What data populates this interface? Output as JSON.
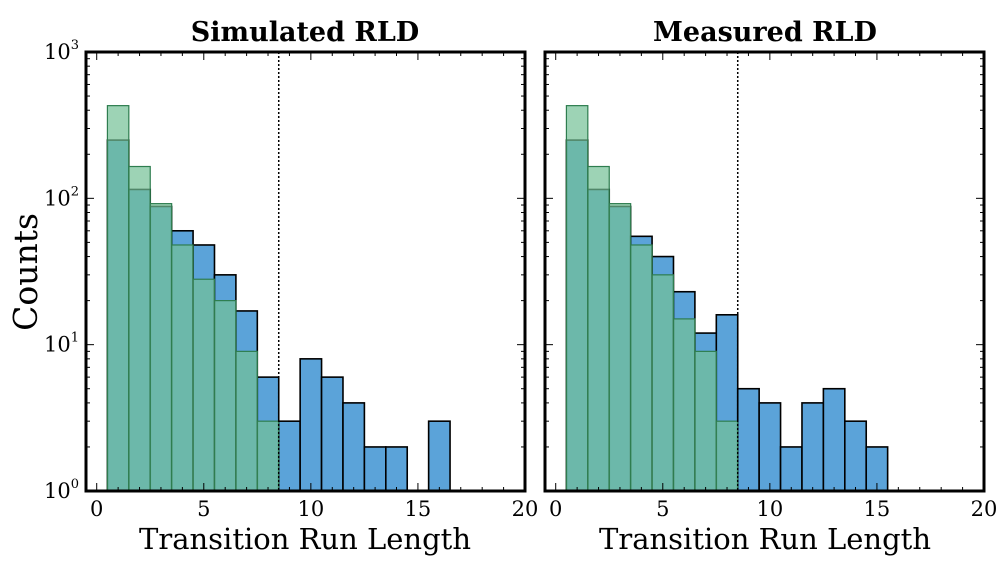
{
  "figure": {
    "ylabel": "Counts",
    "xlabel": "Transition Run Length"
  },
  "colors": {
    "blue_fill": "#5ba3d9",
    "green_fill": "#74c095",
    "green_edge": "#2e7d4f",
    "bar_edge": "#000000"
  },
  "chart_data": [
    {
      "type": "bar",
      "title": "Simulated RLD",
      "xlabel": "Transition Run Length",
      "ylabel": "Counts",
      "yscale": "log",
      "xlim": [
        -0.5,
        20
      ],
      "ylim": [
        1,
        1000
      ],
      "xticks": [
        0,
        5,
        10,
        15,
        20
      ],
      "yticks": [
        {
          "base": "10",
          "exp": "0",
          "value": 1
        },
        {
          "base": "10",
          "exp": "1",
          "value": 10
        },
        {
          "base": "10",
          "exp": "2",
          "value": 100
        },
        {
          "base": "10",
          "exp": "3",
          "value": 1000
        }
      ],
      "threshold": 8.5,
      "bin_width": 1,
      "series": [
        {
          "color": "#5ba3d9",
          "x": [
            1,
            2,
            3,
            4,
            5,
            6,
            7,
            8,
            9,
            10,
            11,
            12,
            13,
            14,
            15,
            16
          ],
          "values": [
            250,
            115,
            88,
            60,
            48,
            30,
            17,
            6,
            3,
            8,
            6,
            4,
            2,
            2,
            1,
            3
          ]
        },
        {
          "color": "#74c095",
          "x": [
            1,
            2,
            3,
            4,
            5,
            6,
            7,
            8
          ],
          "values": [
            430,
            165,
            92,
            48,
            28,
            20,
            9,
            3
          ]
        }
      ]
    },
    {
      "type": "bar",
      "title": "Measured RLD",
      "xlabel": "Transition Run Length",
      "ylabel": "",
      "yscale": "log",
      "xlim": [
        -0.5,
        20
      ],
      "ylim": [
        1,
        1000
      ],
      "xticks": [
        0,
        5,
        10,
        15,
        20
      ],
      "yticks": [],
      "threshold": 8.5,
      "bin_width": 1,
      "series": [
        {
          "color": "#5ba3d9",
          "x": [
            1,
            2,
            3,
            4,
            5,
            6,
            7,
            8,
            9,
            10,
            11,
            12,
            13,
            14,
            15
          ],
          "values": [
            250,
            115,
            88,
            55,
            40,
            23,
            12,
            16,
            5,
            4,
            2,
            4,
            5,
            3,
            2
          ]
        },
        {
          "color": "#74c095",
          "x": [
            1,
            2,
            3,
            4,
            5,
            6,
            7,
            8
          ],
          "values": [
            430,
            165,
            92,
            48,
            30,
            15,
            9,
            3
          ]
        }
      ]
    }
  ]
}
